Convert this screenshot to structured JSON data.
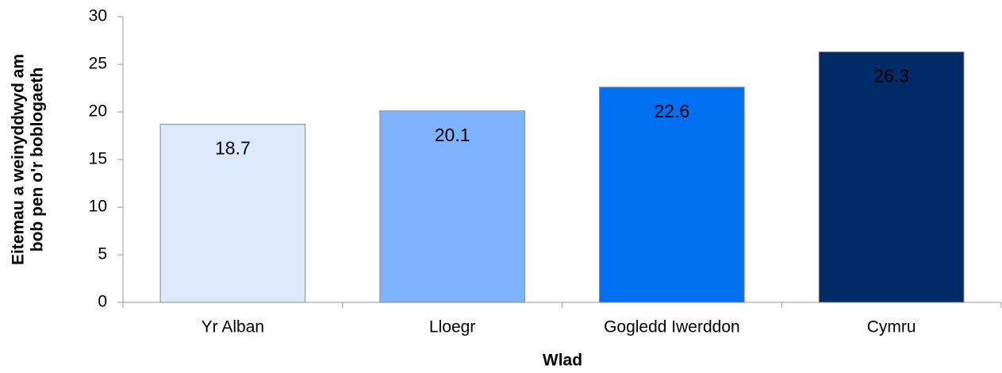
{
  "chart_data": {
    "type": "bar",
    "categories": [
      "Yr Alban",
      "Lloegr",
      "Gogledd Iwerddon",
      "Cymru"
    ],
    "values": [
      18.7,
      20.1,
      22.6,
      26.3
    ],
    "colors": [
      "#dce9fc",
      "#7db3ff",
      "#0070f0",
      "#002b67"
    ],
    "label_colors": [
      "#000000",
      "#000000",
      "#ffffff",
      "#ffffff"
    ],
    "xlabel": "Wlad",
    "ylabel": [
      "Eitemau a weinyddwyd am",
      "bob pen o'r boblogaeth"
    ],
    "ylim": [
      0,
      30
    ],
    "yticks": [
      0,
      5,
      10,
      15,
      20,
      25,
      30
    ],
    "grid": false
  }
}
